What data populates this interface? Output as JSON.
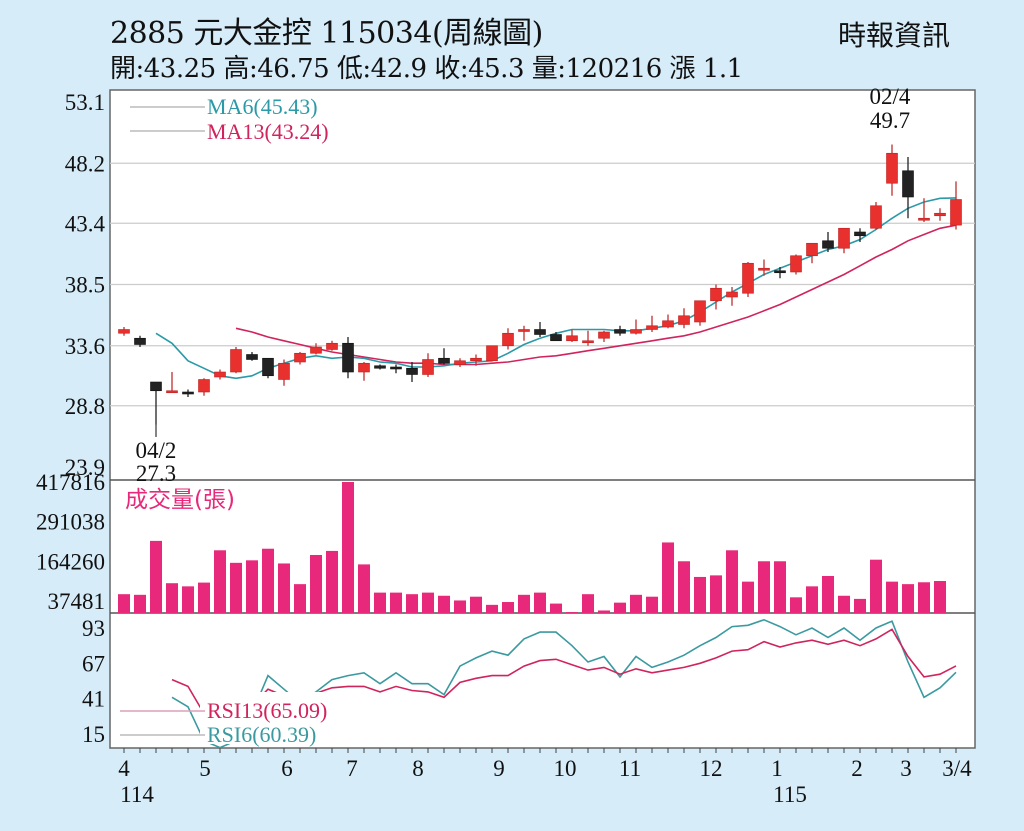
{
  "header": {
    "title": "2885  元大金控 115034(周線圖)",
    "ohlc": "開:43.25 高:46.75 低:42.9 收:45.3 量:120216 漲 1.1",
    "source": "時報資訊"
  },
  "colors": {
    "background": "#d6ecf8",
    "up": "#e8302e",
    "down": "#222222",
    "ma6": "#2a9aa8",
    "ma13": "#d0245c",
    "volume": "#e8287a",
    "rsi13": "#d0245c",
    "rsi6": "#3a9aa0"
  },
  "chart_data": [
    {
      "type": "candlestick",
      "title": "2885 元大金控 週線圖",
      "y_ticks": [
        53.1,
        48.2,
        43.4,
        38.5,
        33.6,
        28.8,
        23.9
      ],
      "ylim": [
        23.9,
        53.1
      ],
      "legend": [
        {
          "name": "MA6",
          "value": "MA6(45.43)"
        },
        {
          "name": "MA13",
          "value": "MA13(43.24)"
        }
      ],
      "annotations": [
        {
          "label": "02/4",
          "value": "49.7",
          "type": "high"
        },
        {
          "label": "04/2",
          "value": "27.3",
          "type": "low"
        }
      ],
      "candles": [
        [
          34.6,
          35.1,
          34.4,
          34.9
        ],
        [
          34.2,
          34.4,
          33.5,
          33.7
        ],
        [
          30.7,
          30.7,
          27.3,
          30.0
        ],
        [
          30.0,
          31.5,
          30.0,
          30.0
        ],
        [
          29.9,
          30.1,
          29.5,
          29.8
        ],
        [
          29.9,
          31.0,
          29.6,
          30.9
        ],
        [
          31.1,
          31.7,
          30.9,
          31.5
        ],
        [
          31.5,
          33.5,
          31.4,
          33.3
        ],
        [
          32.9,
          33.1,
          32.4,
          32.5
        ],
        [
          32.6,
          32.6,
          31.0,
          31.2
        ],
        [
          30.9,
          32.5,
          30.4,
          32.2
        ],
        [
          32.3,
          33.1,
          32.1,
          33.0
        ],
        [
          33.0,
          33.8,
          32.9,
          33.5
        ],
        [
          33.3,
          34.0,
          33.2,
          33.8
        ],
        [
          33.8,
          34.3,
          31.0,
          31.5
        ],
        [
          31.5,
          32.3,
          30.8,
          32.2
        ],
        [
          32.0,
          32.1,
          31.7,
          31.8
        ],
        [
          31.9,
          32.1,
          31.4,
          31.8
        ],
        [
          31.8,
          32.3,
          30.7,
          31.3
        ],
        [
          31.3,
          33.0,
          31.1,
          32.5
        ],
        [
          32.6,
          33.4,
          32.1,
          32.2
        ],
        [
          32.1,
          32.6,
          31.9,
          32.4
        ],
        [
          32.4,
          32.9,
          32.0,
          32.6
        ],
        [
          32.4,
          33.6,
          32.4,
          33.6
        ],
        [
          33.6,
          35.0,
          33.3,
          34.6
        ],
        [
          34.8,
          35.2,
          34.0,
          34.9
        ],
        [
          34.9,
          35.5,
          34.3,
          34.5
        ],
        [
          34.5,
          34.7,
          34.0,
          34.0
        ],
        [
          34.0,
          34.9,
          33.9,
          34.4
        ],
        [
          33.9,
          34.8,
          33.6,
          34.0
        ],
        [
          34.2,
          34.8,
          33.9,
          34.7
        ],
        [
          34.9,
          35.2,
          34.4,
          34.6
        ],
        [
          34.6,
          35.7,
          34.5,
          34.9
        ],
        [
          34.9,
          36.0,
          34.7,
          35.2
        ],
        [
          35.1,
          36.1,
          35.0,
          35.6
        ],
        [
          35.3,
          36.6,
          35.0,
          36.0
        ],
        [
          35.5,
          36.9,
          35.2,
          37.2
        ],
        [
          37.2,
          38.5,
          36.5,
          38.2
        ],
        [
          37.5,
          38.3,
          36.8,
          37.9
        ],
        [
          37.8,
          40.3,
          37.5,
          40.2
        ],
        [
          39.8,
          40.5,
          39.2,
          39.8
        ],
        [
          39.6,
          39.9,
          39.0,
          39.5
        ],
        [
          39.5,
          40.9,
          39.3,
          40.8
        ],
        [
          40.8,
          41.8,
          40.2,
          41.8
        ],
        [
          42.0,
          42.7,
          41.1,
          41.4
        ],
        [
          41.4,
          43.0,
          41.0,
          43.0
        ],
        [
          42.7,
          43.0,
          41.9,
          42.4
        ],
        [
          43.0,
          45.1,
          42.9,
          44.8
        ],
        [
          46.6,
          49.7,
          45.6,
          49.0
        ],
        [
          47.6,
          48.7,
          43.8,
          45.5
        ],
        [
          43.8,
          45.4,
          43.5,
          43.8
        ],
        [
          44.0,
          44.6,
          43.6,
          44.2
        ],
        [
          43.25,
          46.75,
          42.9,
          45.3
        ]
      ],
      "ma6": [
        34.6,
        33.8,
        32.4,
        31.8,
        31.2,
        31.0,
        31.2,
        31.8,
        32.2,
        32.6,
        32.8,
        32.6,
        32.7,
        32.6,
        32.3,
        32.2,
        31.9,
        31.9,
        32.0,
        32.2,
        32.3,
        32.4,
        33.0,
        33.7,
        34.2,
        34.6,
        34.9,
        34.9,
        34.9,
        34.8,
        34.8,
        35.0,
        35.2,
        35.6,
        36.3,
        37.1,
        37.9,
        38.6,
        39.3,
        39.8,
        40.3,
        40.8,
        41.3,
        41.6,
        42.1,
        42.9,
        43.8,
        44.6,
        45.1,
        45.4,
        45.43
      ],
      "ma13": [
        35.0,
        34.7,
        34.3,
        34.0,
        33.7,
        33.4,
        33.1,
        32.9,
        32.7,
        32.5,
        32.3,
        32.2,
        32.2,
        32.1,
        32.1,
        32.1,
        32.2,
        32.3,
        32.5,
        32.7,
        32.8,
        33.0,
        33.2,
        33.4,
        33.6,
        33.8,
        34.0,
        34.2,
        34.4,
        34.7,
        35.1,
        35.5,
        35.9,
        36.4,
        36.9,
        37.5,
        38.1,
        38.7,
        39.3,
        40.0,
        40.7,
        41.3,
        42.0,
        42.5,
        43.0,
        43.24
      ]
    },
    {
      "type": "bar",
      "title": "成交量(張)",
      "y_ticks": [
        417816,
        291038,
        164260,
        37481
      ],
      "values": [
        60000,
        58000,
        230000,
        95000,
        85000,
        97000,
        200000,
        160000,
        168000,
        205000,
        158000,
        92000,
        185000,
        198000,
        417816,
        155000,
        65000,
        65000,
        60000,
        65000,
        55000,
        40000,
        52000,
        26000,
        35000,
        58000,
        65000,
        30000,
        3000,
        60000,
        8000,
        33000,
        58000,
        52000,
        225000,
        165000,
        115000,
        120000,
        200000,
        100000,
        165000,
        165000,
        50000,
        85000,
        118000,
        55000,
        45000,
        170000,
        100000,
        92000,
        98000,
        102000
      ]
    },
    {
      "type": "line",
      "title": "RSI",
      "y_ticks": [
        93,
        67,
        41,
        15
      ],
      "ylim": [
        0,
        100
      ],
      "series": [
        {
          "name": "RSI13",
          "label": "RSI13(65.09)",
          "values": [
            55,
            50,
            30,
            30,
            30,
            36,
            48,
            43,
            38,
            45,
            49,
            50,
            50,
            46,
            50,
            47,
            46,
            42,
            53,
            56,
            58,
            58,
            65,
            69,
            70,
            66,
            62,
            64,
            59,
            63,
            60,
            62,
            64,
            67,
            71,
            76,
            77,
            83,
            79,
            82,
            84,
            81,
            84,
            80,
            85,
            92,
            72,
            57,
            59,
            65.09
          ]
        },
        {
          "name": "RSI6",
          "label": "RSI6(60.39)",
          "values": [
            42,
            35,
            10,
            5,
            10,
            30,
            58,
            48,
            38,
            46,
            55,
            58,
            60,
            52,
            60,
            52,
            52,
            44,
            65,
            71,
            76,
            73,
            85,
            90,
            90,
            80,
            68,
            72,
            57,
            72,
            64,
            68,
            73,
            80,
            86,
            94,
            95,
            99,
            94,
            88,
            93,
            86,
            93,
            84,
            93,
            98,
            68,
            42,
            49,
            60.39
          ]
        }
      ]
    }
  ],
  "x_axis": {
    "ticks": [
      "4",
      "5",
      "6",
      "7",
      "8",
      "9",
      "10",
      "11",
      "12",
      "1",
      "2",
      "3",
      "3/4"
    ],
    "year_labels": [
      "114",
      "115"
    ]
  }
}
